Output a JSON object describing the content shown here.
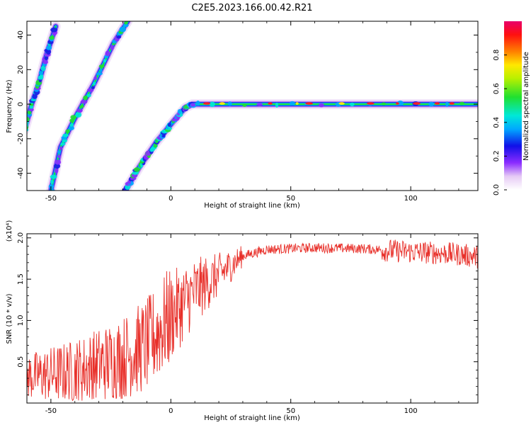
{
  "title": "C2E5.2023.166.00.42.R21",
  "chart_data": [
    {
      "type": "heatmap",
      "xlabel": "Height of straight line (km)",
      "ylabel": "Frequency (Hz)",
      "xlim": [
        -60,
        128
      ],
      "ylim": [
        -50,
        48
      ],
      "xticks": [
        -50,
        0,
        50,
        100
      ],
      "yticks": [
        -40,
        -20,
        0,
        20,
        40
      ],
      "colorbar": {
        "label": "Normalized spectral amplitude",
        "range": [
          0,
          1
        ],
        "ticks": [
          "0.0",
          "0.2",
          "0.4",
          "0.6",
          "0.8"
        ]
      },
      "ridges": [
        {
          "name_hidden": "ridge-a",
          "points": [
            [
              -61,
              -15
            ],
            [
              -58,
              0
            ],
            [
              -55,
              12
            ],
            [
              -52,
              28
            ],
            [
              -48,
              45
            ]
          ]
        },
        {
          "name_hidden": "ridge-b",
          "points": [
            [
              -50,
              -50
            ],
            [
              -46,
              -25
            ],
            [
              -40,
              -8
            ],
            [
              -32,
              12
            ],
            [
              -24,
              35
            ],
            [
              -18,
              48
            ]
          ]
        },
        {
          "name_hidden": "ridge-c",
          "points": [
            [
              -19,
              -50
            ],
            [
              -13,
              -36
            ],
            [
              -6,
              -22
            ],
            [
              1,
              -10
            ],
            [
              6,
              -2
            ],
            [
              9,
              0
            ],
            [
              128,
              0
            ]
          ]
        }
      ]
    },
    {
      "type": "line",
      "xlabel": "Height of straight line (km)",
      "ylabel": "SNR (10 * v/v)",
      "y_multiplier": "(x10⁴)",
      "xlim": [
        -60,
        128
      ],
      "ylim": [
        0,
        2.05
      ],
      "xticks": [
        -50,
        0,
        50,
        100
      ],
      "yticks": [
        "0.5",
        "1.0",
        "1.5",
        "2.0"
      ],
      "color": "#e8302a",
      "series": [
        {
          "x": [
            -60,
            -40,
            -20,
            -10,
            0,
            10,
            20,
            30,
            40,
            60,
            80,
            90,
            100,
            110,
            120,
            128
          ],
          "values": [
            0.32,
            0.38,
            0.55,
            0.7,
            1.05,
            1.35,
            1.55,
            1.78,
            1.86,
            1.88,
            1.87,
            1.85,
            1.83,
            1.82,
            1.8,
            1.77
          ]
        }
      ]
    }
  ]
}
